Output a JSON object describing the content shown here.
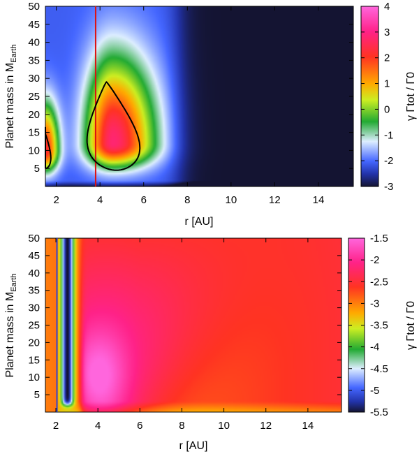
{
  "chart_data": [
    {
      "type": "heatmap",
      "xlabel": "r [AU]",
      "ylabel": {
        "main": "Planet mass in M",
        "sub": "Earth"
      },
      "colorbar_label": "γ Γtot / Γ0",
      "xlim": [
        1.5,
        15.6
      ],
      "ylim": [
        0,
        50
      ],
      "x_ticks": [
        2,
        4,
        6,
        8,
        10,
        12,
        14
      ],
      "y_ticks": [
        5,
        10,
        15,
        20,
        25,
        30,
        35,
        40,
        45,
        50
      ],
      "zlim": [
        -3,
        4
      ],
      "colorbar_ticks": [
        "4",
        "3",
        "2",
        "1",
        "0",
        "-1",
        "-2",
        "-3"
      ],
      "colorbar_tick_values": [
        4,
        3,
        2,
        1,
        0,
        -1,
        -2,
        -3
      ],
      "vertical_line": {
        "r": 3.8,
        "color": "#dd1111"
      },
      "zero_contours": [
        {
          "r_center": 4.75,
          "r_halfwidth": 1.3,
          "m_low": 4.5,
          "m_high": 29
        },
        {
          "r_center": 1.5,
          "r_halfwidth": 0.3,
          "m_low": 5,
          "m_high": 16.5
        }
      ],
      "peaks": [
        {
          "r": 4.9,
          "m": 12,
          "value": 1.8
        },
        {
          "r": 1.5,
          "m": 10,
          "value": 1.2
        }
      ]
    },
    {
      "type": "heatmap",
      "xlabel": "r [AU]",
      "ylabel": {
        "main": "Planet mass in M",
        "sub": "Earth"
      },
      "colorbar_label": "γ Γtot / Γ0",
      "xlim": [
        1.5,
        15.6
      ],
      "ylim": [
        0,
        50
      ],
      "x_ticks": [
        2,
        4,
        6,
        8,
        10,
        12,
        14
      ],
      "y_ticks": [
        5,
        10,
        15,
        20,
        25,
        30,
        35,
        40,
        45,
        50
      ],
      "zlim": [
        -5.5,
        -1.5
      ],
      "colorbar_ticks": [
        "-1.5",
        "-2",
        "-2.5",
        "-3",
        "-3.5",
        "-4",
        "-4.5",
        "-5",
        "-5.5"
      ],
      "colorbar_tick_values": [
        -1.5,
        -2,
        -2.5,
        -3,
        -3.5,
        -4,
        -4.5,
        -5,
        -5.5
      ],
      "vertical_line": {
        "r": 2.05,
        "color": "#3344cc"
      },
      "trough": {
        "r": 2.55,
        "m_min": 3,
        "value": -5.5
      },
      "peak": {
        "r": 4.3,
        "m": 10,
        "value": -1.6
      }
    }
  ]
}
